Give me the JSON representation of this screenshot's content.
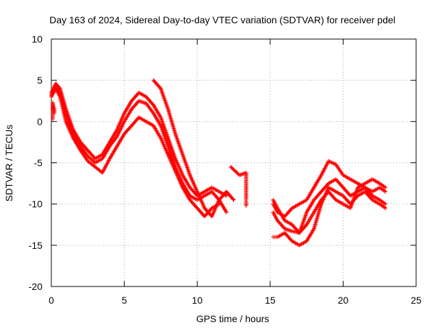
{
  "chart_data": {
    "type": "scatter",
    "title": "Day 163 of 2024, Sidereal Day-to-day VTEC variation (SDTVAR) for receiver pdel",
    "xlabel": "GPS time / hours",
    "ylabel": "SDTVAR / TECUs",
    "xlim": [
      0,
      25
    ],
    "ylim": [
      -20,
      10
    ],
    "xticks": [
      0,
      5,
      10,
      15,
      20,
      25
    ],
    "yticks": [
      -20,
      -15,
      -10,
      -5,
      0,
      5,
      10
    ],
    "xtick_labels": [
      "0",
      "5",
      "10",
      "15",
      "20",
      "25"
    ],
    "ytick_labels": [
      "-20",
      "-15",
      "-10",
      "-5",
      "0",
      "5",
      "10"
    ],
    "grid": true,
    "marker": "+",
    "color": "#ff0000",
    "series": [
      {
        "name": "track-1",
        "x": [
          0.0,
          0.3,
          0.6,
          1.0,
          1.5,
          2.0,
          2.5,
          3.0,
          3.5,
          4.0,
          4.5,
          5.0,
          5.5,
          6.0,
          6.5,
          7.0,
          7.5,
          8.0,
          8.5,
          9.0,
          9.5,
          10.0,
          10.5,
          11.0,
          11.5,
          12.0
        ],
        "y": [
          3.5,
          4.6,
          4.0,
          1.5,
          -1.0,
          -2.5,
          -3.5,
          -4.5,
          -4.0,
          -2.5,
          -1.0,
          1.0,
          2.5,
          3.5,
          3.0,
          2.0,
          0.5,
          -2.0,
          -4.5,
          -6.5,
          -8.0,
          -9.0,
          -8.5,
          -8.0,
          -8.5,
          -9.0
        ]
      },
      {
        "name": "track-2",
        "x": [
          0.0,
          0.3,
          0.6,
          1.0,
          1.5,
          2.0,
          2.5,
          3.0,
          3.5,
          4.0,
          4.5,
          5.0,
          5.5,
          6.0,
          6.5,
          7.0,
          7.5,
          8.0,
          8.5,
          9.0,
          9.5,
          10.0,
          10.5,
          11.0,
          11.5,
          12.0
        ],
        "y": [
          3.2,
          4.3,
          3.5,
          1.0,
          -1.5,
          -3.0,
          -4.2,
          -5.0,
          -4.5,
          -3.0,
          -1.8,
          0.0,
          1.5,
          2.5,
          2.2,
          1.0,
          -0.5,
          -3.0,
          -5.5,
          -7.5,
          -9.0,
          -9.5,
          -9.0,
          -8.5,
          -9.5,
          -11.0
        ]
      },
      {
        "name": "track-3",
        "x": [
          0.0,
          0.3,
          0.6,
          1.0,
          1.5,
          2.0,
          2.5,
          3.0,
          3.5,
          4.0,
          4.5,
          5.0,
          5.5,
          6.0,
          6.5,
          7.0,
          7.5,
          8.0,
          8.5,
          9.0,
          9.5,
          10.0,
          10.5,
          11.0,
          11.5
        ],
        "y": [
          3.0,
          4.0,
          3.0,
          0.0,
          -2.0,
          -3.5,
          -4.8,
          -5.5,
          -6.2,
          -4.5,
          -3.0,
          -1.5,
          -0.5,
          0.5,
          0.0,
          -0.5,
          -2.0,
          -4.0,
          -6.0,
          -8.0,
          -9.5,
          -10.5,
          -11.5,
          -10.5,
          -10.0
        ]
      },
      {
        "name": "track-4",
        "x": [
          7.0,
          7.5,
          8.0,
          8.5,
          9.0,
          9.5,
          10.0,
          10.5,
          11.0,
          11.5,
          12.0,
          12.5
        ],
        "y": [
          5.0,
          4.0,
          1.5,
          -1.5,
          -4.0,
          -6.5,
          -8.5,
          -10.5,
          -11.5,
          -9.5,
          -8.5,
          -9.5
        ]
      },
      {
        "name": "track-5",
        "x": [
          12.3,
          12.6,
          12.9,
          13.35,
          13.35,
          13.35,
          13.35,
          13.35
        ],
        "y": [
          -5.5,
          -6.0,
          -6.5,
          -6.2,
          -7.3,
          -9.3,
          -9.8,
          -10.2
        ]
      },
      {
        "name": "track-6",
        "x": [
          0.1,
          0.1,
          0.1,
          0.1,
          0.1,
          0.2,
          0.2
        ],
        "y": [
          0.3,
          0.8,
          1.3,
          1.8,
          2.3,
          1.0,
          1.6
        ]
      },
      {
        "name": "track-7",
        "x": [
          15.2,
          15.5,
          16.0,
          16.5,
          17.0,
          17.5,
          18.0,
          18.5,
          19.0,
          19.5,
          20.0,
          20.5,
          21.0,
          21.5,
          22.0,
          22.5,
          22.9
        ],
        "y": [
          -10.0,
          -11.0,
          -11.5,
          -10.5,
          -10.0,
          -9.5,
          -8.0,
          -6.5,
          -4.8,
          -5.2,
          -6.5,
          -7.0,
          -7.5,
          -8.0,
          -8.5,
          -8.0,
          -8.5
        ]
      },
      {
        "name": "track-8",
        "x": [
          15.2,
          15.5,
          16.0,
          16.5,
          17.0,
          17.5,
          18.0,
          18.5,
          19.0,
          19.5,
          20.0,
          20.5,
          21.0,
          21.5,
          22.0,
          22.5,
          22.9
        ],
        "y": [
          -11.0,
          -12.0,
          -13.0,
          -13.3,
          -13.5,
          -11.0,
          -9.5,
          -8.5,
          -7.5,
          -7.0,
          -8.0,
          -9.0,
          -8.5,
          -8.0,
          -9.0,
          -9.5,
          -10.0
        ]
      },
      {
        "name": "track-9",
        "x": [
          15.2,
          15.5,
          16.0,
          16.5,
          17.0,
          17.5,
          18.0,
          18.5,
          19.0,
          19.5,
          20.0,
          20.5,
          21.0,
          21.5,
          22.0,
          22.5,
          22.9
        ],
        "y": [
          -14.0,
          -14.0,
          -13.5,
          -14.5,
          -15.0,
          -14.5,
          -13.0,
          -10.0,
          -8.0,
          -8.5,
          -9.0,
          -10.0,
          -9.0,
          -8.5,
          -9.5,
          -10.0,
          -10.5
        ]
      },
      {
        "name": "track-10",
        "x": [
          15.2,
          15.5,
          16.0,
          16.5,
          17.0,
          17.5,
          18.0,
          18.5,
          19.0,
          19.5,
          20.0,
          20.5,
          21.0,
          21.5,
          22.0,
          22.5,
          22.9
        ],
        "y": [
          -9.5,
          -10.5,
          -12.0,
          -12.5,
          -13.5,
          -12.5,
          -11.0,
          -9.5,
          -8.5,
          -9.5,
          -10.0,
          -10.5,
          -8.0,
          -7.5,
          -7.0,
          -7.5,
          -8.0
        ]
      }
    ]
  }
}
